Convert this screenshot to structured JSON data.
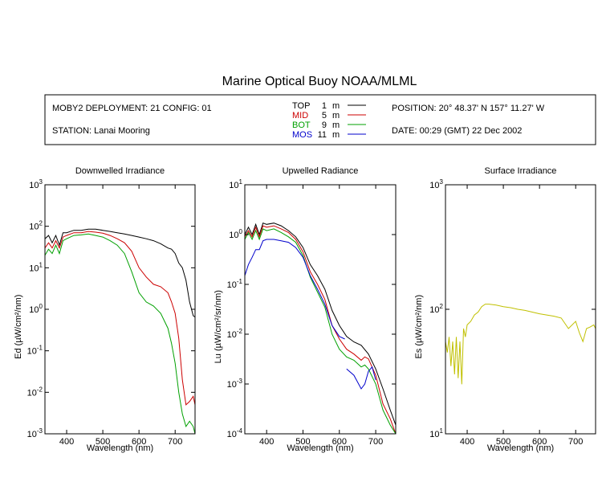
{
  "header": {
    "title": "Marine Optical Buoy NOAA/MLML",
    "deployment": "MOBY2 DEPLOYMENT: 21 CONFIG: 01",
    "station": "STATION: Lanai Mooring",
    "position": "POSITION: 20° 48.37' N   157° 11.27' W",
    "date": "DATE: 00:29 (GMT) 22 Dec 2002"
  },
  "legend": [
    {
      "name": "TOP",
      "depth": "1",
      "unit": "m",
      "color": "#000000"
    },
    {
      "name": "MID",
      "depth": "5",
      "unit": "m",
      "color": "#cc0000"
    },
    {
      "name": "BOT",
      "depth": "9",
      "unit": "m",
      "color": "#00a000"
    },
    {
      "name": "MOS",
      "depth": "11",
      "unit": "m",
      "color": "#0000cc"
    }
  ],
  "chart_data": [
    {
      "type": "line",
      "title": "Downwelled Irradiance",
      "xlabel": "Wavelength (nm)",
      "ylabel": "Ed  (µW/cm²/nm)",
      "xlim": [
        340,
        755
      ],
      "ylim": [
        0.001,
        1000
      ],
      "yscale": "log",
      "xticks": [
        400,
        500,
        600,
        700
      ],
      "ytick_exponents": [
        -3,
        -2,
        -1,
        0,
        1,
        2,
        3
      ],
      "series": [
        {
          "name": "TOP",
          "color": "#000000",
          "x": [
            340,
            350,
            360,
            370,
            380,
            390,
            400,
            420,
            440,
            460,
            480,
            500,
            520,
            540,
            560,
            580,
            600,
            620,
            640,
            660,
            680,
            690,
            700,
            710,
            720,
            730,
            740,
            750,
            755
          ],
          "y": [
            50,
            60,
            40,
            60,
            35,
            70,
            70,
            80,
            80,
            85,
            85,
            80,
            75,
            70,
            65,
            60,
            55,
            50,
            45,
            38,
            30,
            28,
            22,
            13,
            10,
            5,
            1.5,
            0.7,
            0.65
          ]
        },
        {
          "name": "MID",
          "color": "#cc0000",
          "x": [
            340,
            350,
            360,
            370,
            380,
            390,
            400,
            420,
            440,
            460,
            480,
            500,
            520,
            540,
            560,
            580,
            600,
            620,
            640,
            660,
            680,
            690,
            700,
            710,
            720,
            730,
            740,
            750,
            755
          ],
          "y": [
            30,
            40,
            30,
            45,
            30,
            55,
            60,
            70,
            70,
            75,
            72,
            68,
            60,
            50,
            40,
            25,
            10,
            6,
            4,
            3.5,
            2.5,
            1.5,
            0.8,
            0.2,
            0.02,
            0.005,
            0.006,
            0.008,
            0.005
          ]
        },
        {
          "name": "BOT",
          "color": "#00a000",
          "x": [
            340,
            350,
            360,
            370,
            380,
            390,
            400,
            420,
            440,
            460,
            480,
            500,
            520,
            540,
            560,
            580,
            600,
            620,
            640,
            660,
            680,
            690,
            700,
            710,
            720,
            730,
            740,
            750,
            755
          ],
          "y": [
            20,
            28,
            22,
            35,
            22,
            45,
            50,
            60,
            62,
            65,
            60,
            55,
            45,
            35,
            22,
            8,
            2.5,
            1.5,
            1.2,
            0.8,
            0.35,
            0.15,
            0.05,
            0.01,
            0.003,
            0.0015,
            0.002,
            0.0015,
            0.001
          ]
        }
      ]
    },
    {
      "type": "line",
      "title": "Upwelled Radiance",
      "xlabel": "Wavelength (nm)",
      "ylabel": "Lu  (µW/cm²/sr/nm)",
      "xlim": [
        340,
        755
      ],
      "ylim": [
        0.0001,
        10
      ],
      "yscale": "log",
      "xticks": [
        400,
        500,
        600,
        700
      ],
      "ytick_exponents": [
        -4,
        -3,
        -2,
        -1,
        0,
        1
      ],
      "series": [
        {
          "name": "TOP",
          "color": "#000000",
          "x": [
            340,
            350,
            360,
            370,
            380,
            390,
            400,
            420,
            440,
            460,
            480,
            500,
            520,
            540,
            560,
            580,
            600,
            620,
            640,
            660,
            680,
            700,
            720,
            740,
            755
          ],
          "y": [
            1.0,
            1.4,
            1.0,
            1.6,
            1.0,
            1.7,
            1.6,
            1.7,
            1.5,
            1.2,
            0.9,
            0.55,
            0.25,
            0.15,
            0.08,
            0.03,
            0.015,
            0.009,
            0.007,
            0.006,
            0.004,
            0.002,
            0.0008,
            0.0003,
            0.00015
          ]
        },
        {
          "name": "MID",
          "color": "#cc0000",
          "x": [
            340,
            350,
            360,
            370,
            380,
            390,
            400,
            420,
            440,
            460,
            480,
            500,
            520,
            540,
            560,
            580,
            600,
            620,
            640,
            660,
            670,
            680,
            700,
            720,
            740,
            755
          ],
          "y": [
            0.9,
            1.2,
            0.9,
            1.4,
            0.9,
            1.5,
            1.4,
            1.5,
            1.3,
            1.1,
            0.8,
            0.45,
            0.18,
            0.1,
            0.05,
            0.015,
            0.008,
            0.005,
            0.004,
            0.003,
            0.0035,
            0.0032,
            0.0015,
            0.0004,
            0.0002,
            0.0001
          ]
        },
        {
          "name": "BOT",
          "color": "#00a000",
          "x": [
            340,
            350,
            360,
            370,
            380,
            390,
            400,
            420,
            440,
            460,
            480,
            500,
            520,
            540,
            560,
            580,
            600,
            620,
            640,
            660,
            670,
            680,
            700,
            720,
            740,
            755
          ],
          "y": [
            0.8,
            1.1,
            0.8,
            1.2,
            0.8,
            1.3,
            1.2,
            1.3,
            1.1,
            0.9,
            0.7,
            0.38,
            0.14,
            0.07,
            0.035,
            0.01,
            0.005,
            0.0035,
            0.003,
            0.0022,
            0.0024,
            0.002,
            0.001,
            0.0003,
            0.00015,
            0.0001
          ]
        },
        {
          "name": "MOS",
          "color": "#0000cc",
          "x": [
            340,
            350,
            360,
            370,
            380,
            390,
            400,
            420,
            440,
            460,
            480,
            500,
            520,
            540,
            560,
            580,
            600,
            615
          ],
          "y": [
            0.15,
            0.25,
            0.35,
            0.5,
            0.5,
            0.75,
            0.8,
            0.8,
            0.75,
            0.7,
            0.55,
            0.35,
            0.15,
            0.08,
            0.04,
            0.015,
            0.009,
            0.008
          ]
        },
        {
          "name": "MOS",
          "color": "#0000cc",
          "x": [
            620,
            640,
            660,
            670,
            680,
            690,
            700
          ],
          "y": [
            0.002,
            0.0015,
            0.0008,
            0.001,
            0.0018,
            0.0022,
            0.0012
          ]
        }
      ]
    },
    {
      "type": "line",
      "title": "Surface Irradiance",
      "xlabel": "Wavelength (nm)",
      "ylabel": "Es  (µW/cm²/nm)",
      "xlim": [
        340,
        755
      ],
      "ylim": [
        10,
        1000
      ],
      "yscale": "log",
      "xticks": [
        400,
        500,
        600,
        700
      ],
      "ytick_exponents": [
        1,
        2,
        3
      ],
      "series": [
        {
          "name": "Es",
          "color": "#c0c000",
          "x": [
            340,
            345,
            350,
            355,
            360,
            365,
            370,
            375,
            380,
            385,
            390,
            395,
            400,
            410,
            420,
            430,
            440,
            450,
            460,
            480,
            500,
            520,
            540,
            560,
            580,
            600,
            620,
            640,
            660,
            680,
            700,
            710,
            720,
            730,
            740,
            750,
            755
          ],
          "y": [
            55,
            45,
            60,
            35,
            55,
            30,
            60,
            28,
            55,
            25,
            70,
            60,
            75,
            80,
            90,
            95,
            105,
            110,
            110,
            108,
            105,
            103,
            100,
            98,
            95,
            92,
            90,
            88,
            85,
            70,
            80,
            65,
            55,
            70,
            72,
            75,
            70
          ]
        }
      ]
    }
  ]
}
